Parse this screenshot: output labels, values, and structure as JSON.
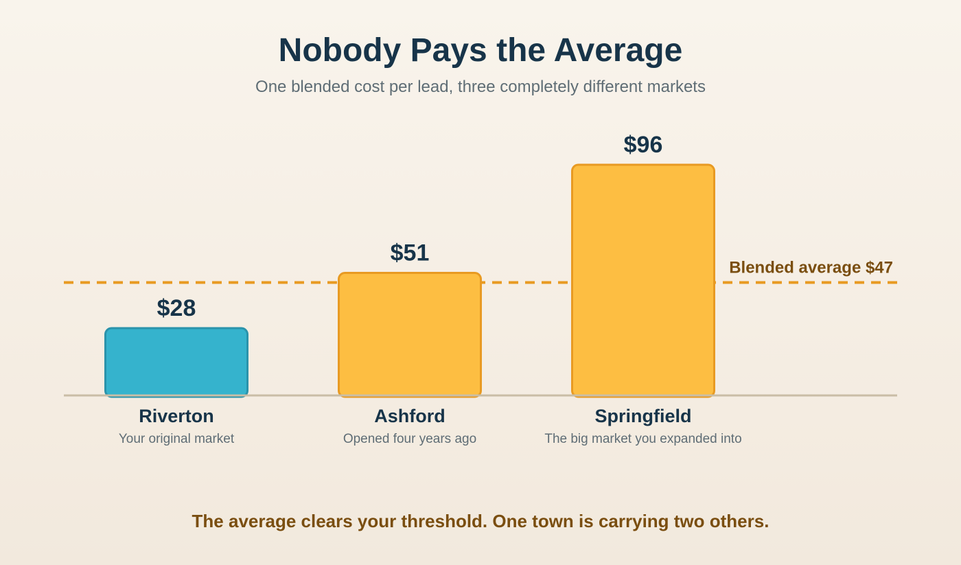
{
  "title": "Nobody Pays the Average",
  "subtitle": "One blended cost per lead, three completely different markets",
  "footer": "The average clears your threshold. One town is carrying two others.",
  "chart_data": {
    "type": "bar",
    "categories": [
      "Riverton",
      "Ashford",
      "Springfield"
    ],
    "category_notes": [
      "Your original market",
      "Opened four years ago",
      "The big market you expanded into"
    ],
    "values": [
      28,
      51,
      96
    ],
    "value_labels": [
      "$28",
      "$51",
      "$96"
    ],
    "bar_colors": [
      "#35b3cd",
      "#fdbe42",
      "#fdbe42"
    ],
    "bar_stroke_colors": [
      "#2a93ab",
      "#e89a22",
      "#e89a22"
    ],
    "reference_line": {
      "value": 47,
      "label": "Blended average $47",
      "color": "#e89a22",
      "label_color": "#7a4e10",
      "style": "dashed"
    },
    "ylim": [
      0,
      100
    ],
    "grid": false,
    "legend": "none",
    "xlabel": "",
    "ylabel": ""
  },
  "colors": {
    "title": "#173449",
    "subtitle": "#5f6d75",
    "value_label": "#173449",
    "category_label": "#173449",
    "note": "#5f6d75",
    "baseline": "#c9bda6",
    "footer": "#7a4e10"
  }
}
